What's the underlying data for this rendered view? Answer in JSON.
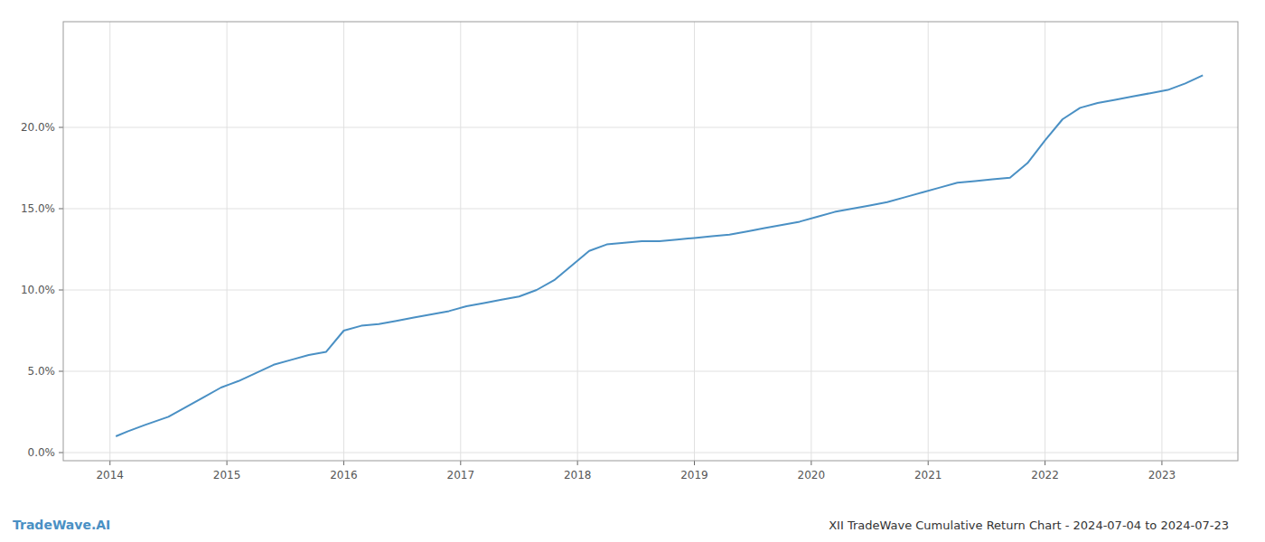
{
  "chart_data": {
    "type": "line",
    "title": "XII TradeWave Cumulative Return Chart - 2024-07-04 to 2024-07-23",
    "annotations": [
      "TradeWave.AI"
    ],
    "color": "#4a90c4",
    "grid": true,
    "x": [
      2014.05,
      2014.15,
      2014.3,
      2014.5,
      2014.65,
      2014.8,
      2014.95,
      2015.1,
      2015.25,
      2015.4,
      2015.55,
      2015.7,
      2015.85,
      2016.0,
      2016.15,
      2016.3,
      2016.45,
      2016.6,
      2016.75,
      2016.9,
      2017.05,
      2017.2,
      2017.35,
      2017.5,
      2017.65,
      2017.8,
      2017.95,
      2018.1,
      2018.25,
      2018.4,
      2018.55,
      2018.7,
      2018.85,
      2019.0,
      2019.15,
      2019.3,
      2019.45,
      2019.6,
      2019.75,
      2019.9,
      2020.05,
      2020.2,
      2020.35,
      2020.5,
      2020.65,
      2020.8,
      2020.95,
      2021.1,
      2021.25,
      2021.4,
      2021.55,
      2021.7,
      2021.85,
      2022.0,
      2022.15,
      2022.3,
      2022.45,
      2022.6,
      2022.75,
      2022.9,
      2023.05,
      2023.2,
      2023.35
    ],
    "values": [
      0.01,
      0.013,
      0.017,
      0.022,
      0.028,
      0.034,
      0.04,
      0.044,
      0.049,
      0.054,
      0.057,
      0.06,
      0.062,
      0.075,
      0.078,
      0.079,
      0.081,
      0.083,
      0.085,
      0.087,
      0.09,
      0.092,
      0.094,
      0.096,
      0.1,
      0.106,
      0.115,
      0.124,
      0.128,
      0.129,
      0.13,
      0.13,
      0.131,
      0.132,
      0.133,
      0.134,
      0.136,
      0.138,
      0.14,
      0.142,
      0.145,
      0.148,
      0.15,
      0.152,
      0.154,
      0.157,
      0.16,
      0.163,
      0.166,
      0.167,
      0.168,
      0.169,
      0.178,
      0.192,
      0.205,
      0.212,
      0.215,
      0.217,
      0.219,
      0.221,
      0.223,
      0.227,
      0.232
    ],
    "xlim": [
      2013.6,
      2023.65
    ],
    "xticks": [
      2014,
      2015,
      2016,
      2017,
      2018,
      2019,
      2020,
      2021,
      2022,
      2023
    ],
    "ylim": [
      -0.005,
      0.265
    ],
    "yticks": [
      {
        "value": 0.0,
        "label": "0.0%"
      },
      {
        "value": 0.05,
        "label": "5.0%"
      },
      {
        "value": 0.1,
        "label": "10.0%"
      },
      {
        "value": 0.15,
        "label": "15.0%"
      },
      {
        "value": 0.2,
        "label": "20.0%"
      }
    ]
  }
}
